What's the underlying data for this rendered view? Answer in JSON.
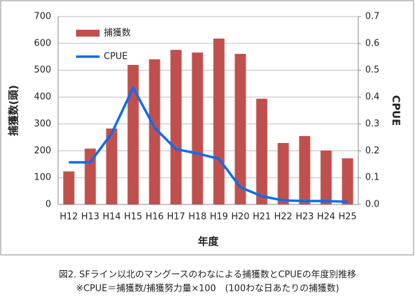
{
  "chart_data": {
    "type": "bar_line",
    "categories": [
      "H12",
      "H13",
      "H14",
      "H15",
      "H16",
      "H17",
      "H18",
      "H19",
      "H20",
      "H21",
      "H22",
      "H23",
      "H24",
      "H25"
    ],
    "series": [
      {
        "name": "捕獲数",
        "type": "bar",
        "color": "#c0504d",
        "values": [
          123,
          208,
          283,
          520,
          541,
          576,
          566,
          618,
          561,
          394,
          229,
          255,
          201,
          172
        ]
      },
      {
        "name": "CPUE",
        "type": "line",
        "axis": "y2",
        "color": "#0a6cf0",
        "values": [
          0.157,
          0.157,
          0.265,
          0.435,
          0.286,
          0.206,
          0.19,
          0.17,
          0.064,
          0.031,
          0.015,
          0.013,
          0.013,
          0.01
        ]
      }
    ],
    "ylim": [
      0,
      700
    ],
    "yticks": [
      0,
      100,
      200,
      300,
      400,
      500,
      600,
      700
    ],
    "y2lim": [
      0,
      0.7
    ],
    "y2ticks": [
      {
        "value": 0,
        "label": "0.0"
      },
      0.1,
      0.2,
      0.3,
      0.4,
      0.5,
      0.6,
      0.7
    ],
    "ylabel": "捕獲数(頭)",
    "y2label": "CPUE",
    "xlabel": "年度",
    "grid": true,
    "legend": "upper-left",
    "caption": [
      "図2. SFライン以北のマングースのわなによる捕獲数とCPUEの年度別推移",
      "※CPUE＝捕獲数/捕獲努力量×100　(100わな日あたりの捕獲数)"
    ]
  }
}
